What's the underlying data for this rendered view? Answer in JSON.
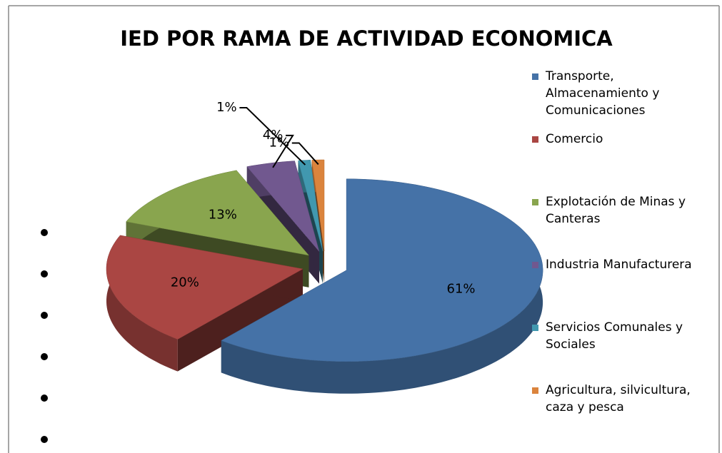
{
  "chart_data": {
    "type": "pie",
    "title": "IED POR RAMA DE ACTIVIDAD ECONOMICA",
    "categories": [
      "Transporte, Almacenamiento y Comunicaciones",
      "Comercio",
      "Explotación de Minas y Canteras",
      "Industria Manufacturera",
      "Servicios Comunales y Sociales",
      "Agricultura, silvicultura, caza y pesca"
    ],
    "values": [
      61,
      20,
      13,
      4,
      1,
      1
    ],
    "value_labels": [
      "61%",
      "20%",
      "13%",
      "4%",
      "1%",
      "1%"
    ],
    "colors": [
      "#4572a7",
      "#aa4643",
      "#89a54e",
      "#71588f",
      "#4198af",
      "#db843d"
    ],
    "legend": "right"
  }
}
